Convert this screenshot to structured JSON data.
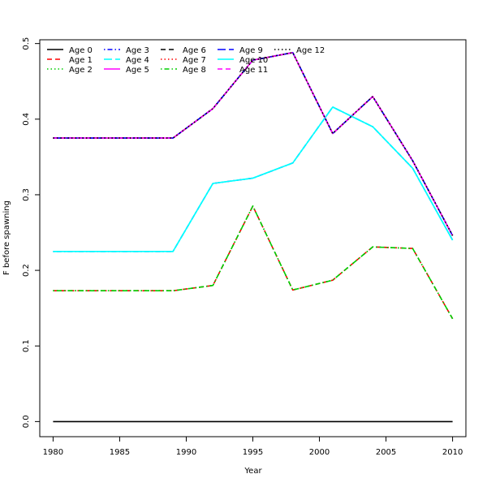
{
  "chart_data": {
    "type": "line",
    "xlabel": "Year",
    "ylabel": "F before spawning",
    "xlim": [
      1979,
      2011
    ],
    "ylim": [
      -0.02,
      0.505
    ],
    "xticks": [
      1980,
      1985,
      1990,
      1995,
      2000,
      2005,
      2010
    ],
    "yticks": [
      0.0,
      0.1,
      0.2,
      0.3,
      0.4,
      0.5
    ],
    "ytick_labels": [
      "0.0",
      "0.1",
      "0.2",
      "0.3",
      "0.4",
      "0.5"
    ],
    "grid": false,
    "legend_position": "top-left",
    "x": [
      1980,
      1989,
      1992,
      1995,
      1998,
      2001,
      2004,
      2007,
      2010
    ],
    "series": [
      {
        "name": "Age 0",
        "color": "#000000",
        "dash": "solid",
        "values": [
          0,
          0,
          0,
          0,
          0,
          0,
          0,
          0,
          0
        ]
      },
      {
        "name": "Age 1",
        "color": "#ff0000",
        "dash": "dashed",
        "values": [
          0.173,
          0.173,
          0.18,
          0.285,
          0.174,
          0.187,
          0.231,
          0.229,
          0.136
        ]
      },
      {
        "name": "Age 2",
        "color": "#00cd00",
        "dash": "dotted",
        "values": [
          0.173,
          0.173,
          0.18,
          0.285,
          0.174,
          0.187,
          0.231,
          0.229,
          0.136
        ]
      },
      {
        "name": "Age 3",
        "color": "#0000ff",
        "dash": "dotdash",
        "values": [
          0.225,
          0.225,
          0.315,
          0.322,
          0.342,
          0.416,
          0.39,
          0.335,
          0.24
        ]
      },
      {
        "name": "Age 4",
        "color": "#00ffff",
        "dash": "longdash",
        "values": [
          0.225,
          0.225,
          0.315,
          0.322,
          0.342,
          0.416,
          0.39,
          0.335,
          0.24
        ]
      },
      {
        "name": "Age 5",
        "color": "#ff00ff",
        "dash": "solid",
        "values": [
          0.375,
          0.375,
          0.414,
          0.478,
          0.488,
          0.381,
          0.43,
          0.345,
          0.246
        ]
      },
      {
        "name": "Age 6",
        "color": "#000000",
        "dash": "dashed",
        "values": [
          0.375,
          0.375,
          0.414,
          0.478,
          0.488,
          0.381,
          0.43,
          0.345,
          0.246
        ]
      },
      {
        "name": "Age 7",
        "color": "#ff0000",
        "dash": "dotted",
        "values": [
          0.375,
          0.375,
          0.414,
          0.478,
          0.488,
          0.381,
          0.43,
          0.345,
          0.246
        ]
      },
      {
        "name": "Age 8",
        "color": "#00cd00",
        "dash": "dotdash",
        "values": [
          0.173,
          0.173,
          0.18,
          0.285,
          0.174,
          0.187,
          0.231,
          0.229,
          0.136
        ]
      },
      {
        "name": "Age 9",
        "color": "#0000ff",
        "dash": "longdash",
        "values": [
          0.375,
          0.375,
          0.414,
          0.478,
          0.488,
          0.381,
          0.43,
          0.345,
          0.246
        ]
      },
      {
        "name": "Age 10",
        "color": "#00ffff",
        "dash": "solid",
        "values": [
          0.225,
          0.225,
          0.315,
          0.322,
          0.342,
          0.416,
          0.39,
          0.335,
          0.24
        ]
      },
      {
        "name": "Age 11",
        "color": "#ff00ff",
        "dash": "dashed",
        "values": [
          0.375,
          0.375,
          0.414,
          0.478,
          0.488,
          0.381,
          0.43,
          0.345,
          0.246
        ]
      },
      {
        "name": "Age 12",
        "color": "#000000",
        "dash": "dotted",
        "values": [
          0.375,
          0.375,
          0.414,
          0.478,
          0.488,
          0.381,
          0.43,
          0.345,
          0.246
        ]
      }
    ]
  }
}
